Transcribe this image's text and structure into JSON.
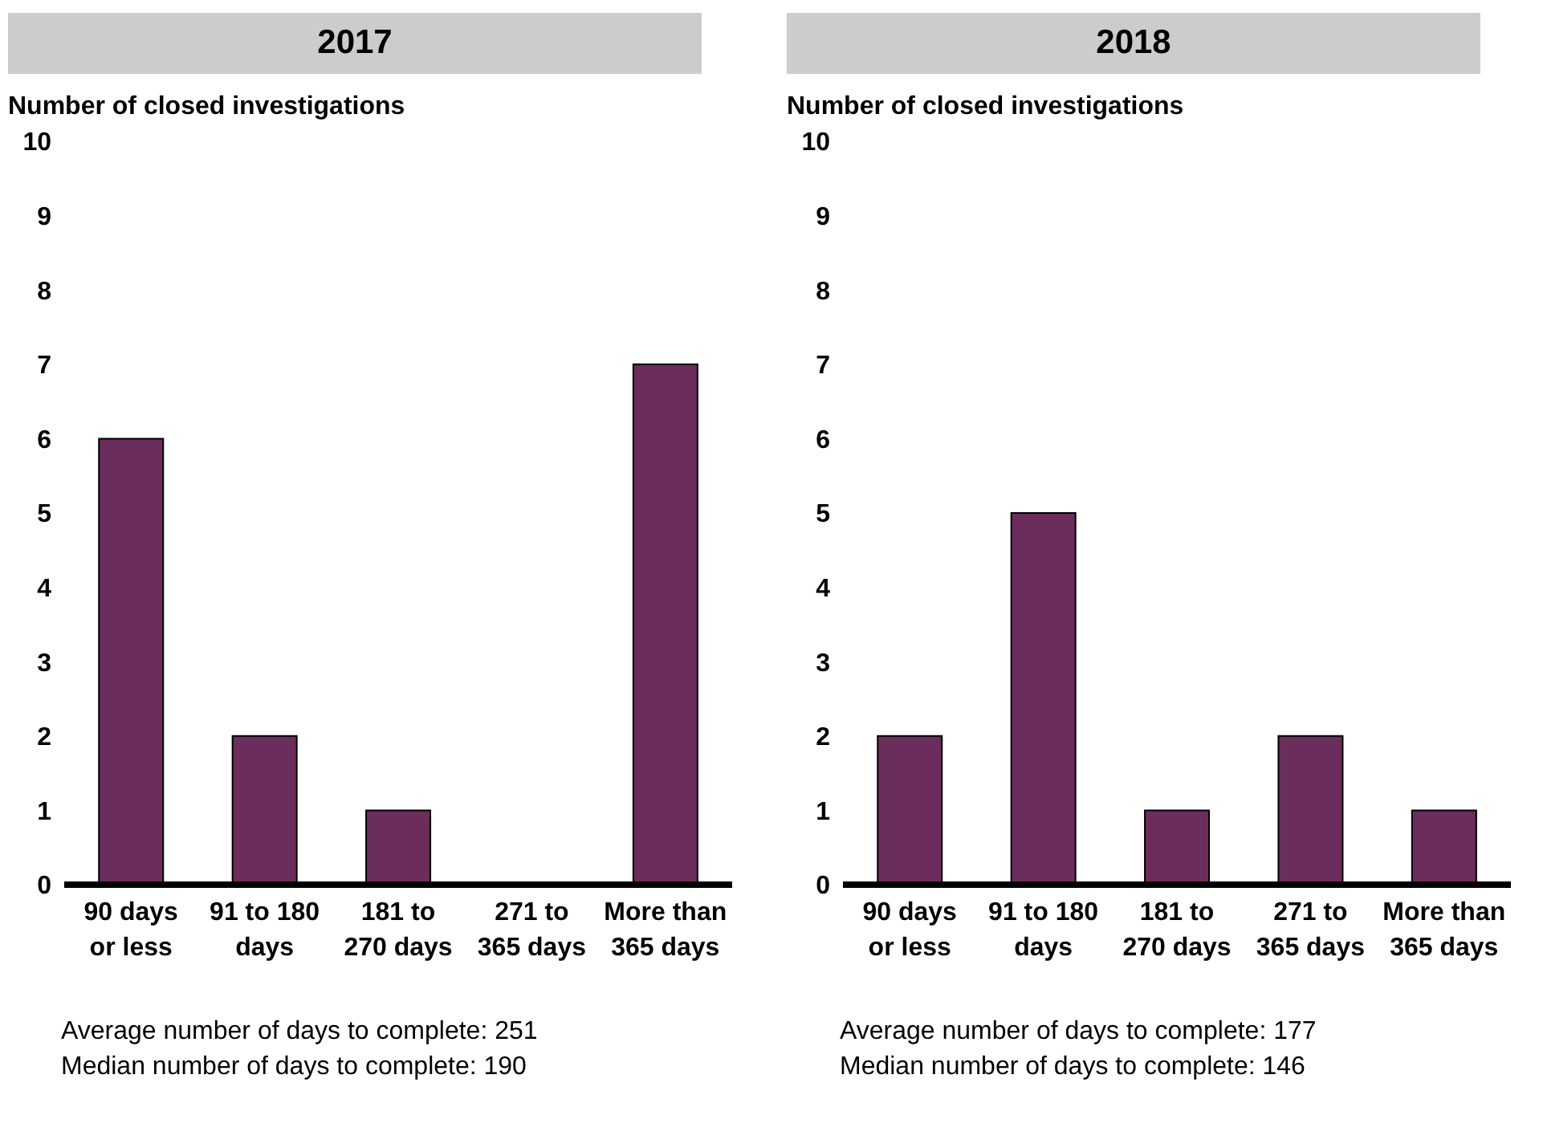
{
  "chart_data": [
    {
      "type": "bar",
      "title": "2017",
      "ylabel": "Number of closed investigations",
      "categories": [
        "90 days or less",
        "91 to 180 days",
        "181 to 270 days",
        "271 to 365 days",
        "More than 365 days"
      ],
      "values": [
        6,
        2,
        1,
        0,
        7
      ],
      "color": "#6b2d5c",
      "ylim": [
        0,
        10
      ],
      "yticks": [
        0,
        1,
        2,
        3,
        4,
        5,
        6,
        7,
        8,
        9,
        10
      ],
      "annotations": [
        "Average number of days to complete: 251",
        "Median number of days to complete: 190"
      ]
    },
    {
      "type": "bar",
      "title": "2018",
      "ylabel": "Number of closed investigations",
      "categories": [
        "90 days or less",
        "91 to 180 days",
        "181 to 270 days",
        "271 to 365 days",
        "More than 365 days"
      ],
      "values": [
        2,
        5,
        1,
        2,
        1
      ],
      "color": "#6b2d5c",
      "ylim": [
        0,
        10
      ],
      "yticks": [
        0,
        1,
        2,
        3,
        4,
        5,
        6,
        7,
        8,
        9,
        10
      ],
      "annotations": [
        "Average number of days to complete: 177",
        "Median number of days to complete: 146"
      ]
    }
  ]
}
